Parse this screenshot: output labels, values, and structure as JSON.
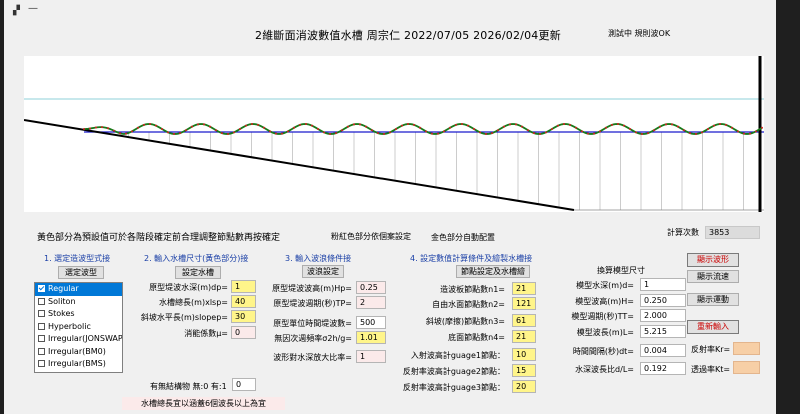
{
  "window": {
    "title": "2維斷面消波數值水槽   周宗仁  2022/07/05  2026/02/04更新",
    "status": "測試中 規則波OK"
  },
  "hints": {
    "yellow_note": "黃色部分為預設值可於各階段確定前合理調整節點數再按確定",
    "pink_note": "粉紅色部分依個案設定",
    "gold_note": "金色部分自動配置",
    "calc_count_label": "計算次數",
    "calc_count_value": "3853"
  },
  "step1": {
    "heading": "1. 選定造波型式接",
    "button": "選定波型",
    "options": [
      {
        "label": "Regular",
        "checked": true
      },
      {
        "label": "Soliton",
        "checked": false
      },
      {
        "label": "Stokes",
        "checked": false
      },
      {
        "label": "Hyperbolic",
        "checked": false
      },
      {
        "label": "Irregular(JONSWAP)",
        "checked": false
      },
      {
        "label": "Irregular(BM0)",
        "checked": false
      },
      {
        "label": "Irregular(BMS)",
        "checked": false
      }
    ]
  },
  "step2": {
    "heading": "2. 輸入水槽尺寸(黃色部分)接",
    "button": "設定水槽",
    "fields": [
      {
        "label": "原型堤波水深(m)dp=",
        "value": "1"
      },
      {
        "label": "水槽總長(m)xlsp=",
        "value": "40"
      },
      {
        "label": "斜坡水平長(m)slopep=",
        "value": "30"
      },
      {
        "label": "消能係數μ=",
        "value": "0"
      }
    ],
    "structure_label": "有無結構物 無:0 有:1",
    "structure_value": "0",
    "warning": "水槽總長宜以涵蓋6個波長以上為宜"
  },
  "step3": {
    "heading": "3. 輸入波浪條件接",
    "button": "波浪設定",
    "fields": [
      {
        "label": "原型堤波波高(m)Hp=",
        "value": "0.25"
      },
      {
        "label": "原型堤波週期(秒)TP=",
        "value": "2"
      },
      {
        "label": "原型單位時間堤波數=",
        "value": "500"
      },
      {
        "label": "無因次週頻率σ2h/g=",
        "value": "1.01"
      },
      {
        "label": "波形對水深放大比率=",
        "value": "1"
      }
    ]
  },
  "step4": {
    "heading": "4. 設定數值計算條件及繪製水槽接",
    "button": "節點設定及水槽繪",
    "fields": [
      {
        "label": "造波板節點數n1=",
        "value": "21"
      },
      {
        "label": "自由水面節點數n2=",
        "value": "121"
      },
      {
        "label": "斜坡(摩擦)節點數n3=",
        "value": "61"
      },
      {
        "label": "底面節點數n4=",
        "value": "21"
      },
      {
        "label": "入射波高計guage1節點：",
        "value": "10"
      },
      {
        "label": "反射率波高計guage2節點：",
        "value": "15"
      },
      {
        "label": "反射率波高計guage3節點：",
        "value": "20"
      }
    ]
  },
  "model": {
    "heading": "換算模型尺寸",
    "fields": [
      {
        "label": "模型水深(m)d=",
        "value": "1"
      },
      {
        "label": "模型波高(m)H=",
        "value": "0.250"
      },
      {
        "label": "模型週期(秒)TT=",
        "value": "2.000"
      },
      {
        "label": "模型波長(m)L=",
        "value": "5.215"
      },
      {
        "label": "時間間隔(秒)dt=",
        "value": "0.004"
      },
      {
        "label": "水深波長比d/L=",
        "value": "0.192"
      }
    ]
  },
  "actions": {
    "show_wave": "顯示波形",
    "show_flow": "顯示流速",
    "show_motion": "顯示運動",
    "reinput": "重新輸入"
  },
  "coeffs": {
    "kr_label": "反射率Kr=",
    "kt_label": "透過率Kt=",
    "kr_value": "",
    "kt_value": ""
  },
  "colors": {
    "wave_line": "#1a7a1a",
    "wave_markers": "#d42020",
    "still_water": "#1a1acc",
    "upper_line": "#8fd0d8",
    "grid": "#aaaaaa",
    "accent_pink": "#fbeaea",
    "accent_yellow": "#fff58a",
    "accent_peach": "#f7cfa6",
    "selection": "#0078d7"
  }
}
